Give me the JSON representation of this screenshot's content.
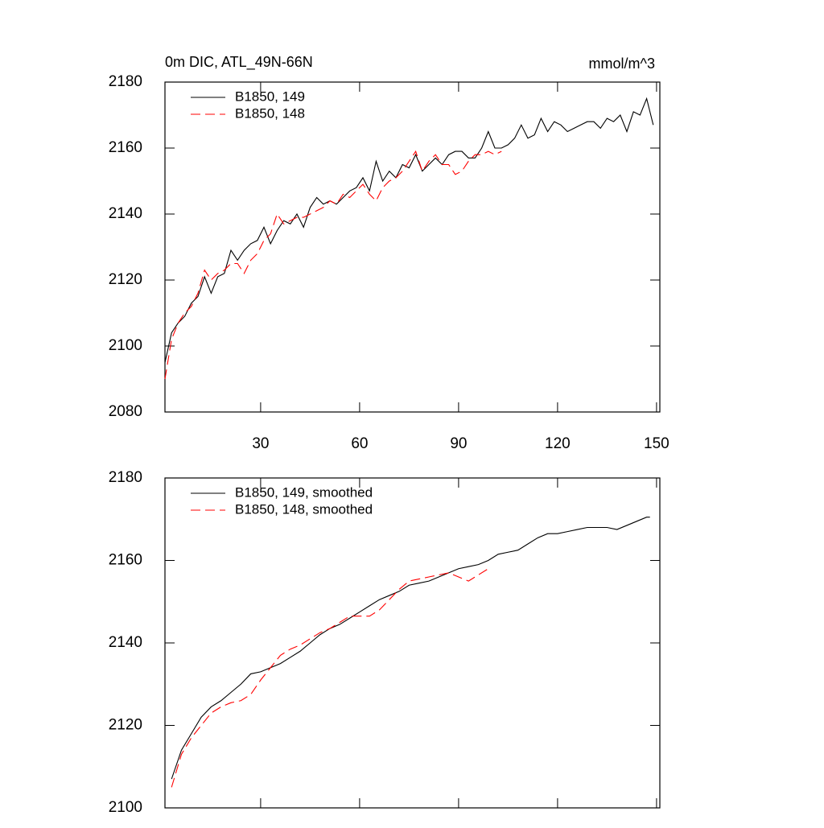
{
  "chart_data": [
    {
      "type": "line",
      "title": "0m DIC, ATL_49N-66N",
      "units": "mmol/m^3",
      "xlim": [
        1,
        151
      ],
      "xticks": [
        30,
        60,
        90,
        120,
        150
      ],
      "xticklabels": true,
      "ylim": [
        2080,
        2180
      ],
      "yticks": [
        2080,
        2100,
        2120,
        2140,
        2160,
        2180
      ],
      "series": [
        {
          "name": "B1850, 149",
          "color": "#000000",
          "linestyle": "solid",
          "x": [
            1,
            3,
            5,
            7,
            9,
            11,
            13,
            15,
            17,
            19,
            21,
            23,
            25,
            27,
            29,
            31,
            33,
            35,
            37,
            39,
            41,
            43,
            45,
            47,
            49,
            51,
            53,
            55,
            57,
            59,
            61,
            63,
            65,
            67,
            69,
            71,
            73,
            75,
            77,
            79,
            81,
            83,
            85,
            87,
            89,
            91,
            93,
            95,
            97,
            99,
            101,
            103,
            105,
            107,
            109,
            111,
            113,
            115,
            117,
            119,
            121,
            123,
            125,
            127,
            129,
            131,
            133,
            135,
            137,
            139,
            141,
            143,
            145,
            147,
            149
          ],
          "values": [
            2095,
            2104,
            2107,
            2109,
            2113,
            2115,
            2121,
            2116,
            2121,
            2122,
            2129,
            2126,
            2129,
            2131,
            2132,
            2136,
            2131,
            2135,
            2138,
            2137,
            2140,
            2136,
            2142,
            2145,
            2143,
            2144,
            2143,
            2145,
            2147,
            2148,
            2151,
            2147,
            2156,
            2150,
            2153,
            2151,
            2155,
            2154,
            2158,
            2153,
            2155,
            2157,
            2155,
            2158,
            2159,
            2159,
            2157,
            2157,
            2160,
            2165,
            2160,
            2160,
            2161,
            2163,
            2167,
            2163,
            2164,
            2169,
            2165,
            2168,
            2167,
            2165,
            2166,
            2167,
            2168,
            2168,
            2166,
            2169,
            2168,
            2170,
            2165,
            2171,
            2170,
            2175,
            2167
          ]
        },
        {
          "name": "B1850, 148",
          "color": "#ff0000",
          "linestyle": "dashed",
          "x": [
            1,
            3,
            5,
            7,
            9,
            11,
            13,
            15,
            17,
            19,
            21,
            23,
            25,
            27,
            29,
            31,
            33,
            35,
            37,
            39,
            41,
            43,
            45,
            47,
            49,
            51,
            53,
            55,
            57,
            59,
            61,
            63,
            65,
            67,
            69,
            71,
            73,
            75,
            77,
            79,
            81,
            83,
            85,
            87,
            89,
            91,
            93,
            95,
            97,
            99,
            101,
            103
          ],
          "values": [
            2090,
            2102,
            2107,
            2110,
            2112,
            2116,
            2123,
            2120,
            2122,
            2123,
            2125,
            2125,
            2122,
            2126,
            2128,
            2132,
            2134,
            2140,
            2137,
            2138,
            2139,
            2139,
            2140,
            2141,
            2142,
            2144,
            2143,
            2146,
            2145,
            2147,
            2149,
            2146,
            2144,
            2148,
            2150,
            2151,
            2153,
            2156,
            2159,
            2153,
            2156,
            2158,
            2155,
            2155,
            2152,
            2153,
            2156,
            2158,
            2158,
            2159,
            2158,
            2159
          ]
        }
      ]
    },
    {
      "type": "line",
      "xlim": [
        1,
        151
      ],
      "xticks": [
        30,
        60,
        90,
        120,
        150
      ],
      "xticklabels": false,
      "ylim": [
        2100,
        2180
      ],
      "yticks": [
        2100,
        2120,
        2140,
        2160,
        2180
      ],
      "series": [
        {
          "name": "B1850, 149, smoothed",
          "color": "#000000",
          "linestyle": "solid",
          "x": [
            3,
            6,
            9,
            12,
            15,
            18,
            21,
            24,
            27,
            30,
            33,
            36,
            39,
            42,
            45,
            48,
            51,
            54,
            57,
            60,
            63,
            66,
            69,
            72,
            75,
            78,
            81,
            84,
            87,
            90,
            93,
            96,
            99,
            102,
            105,
            108,
            111,
            114,
            117,
            120,
            123,
            126,
            129,
            132,
            135,
            138,
            141,
            144,
            147,
            148
          ],
          "values": [
            2107,
            2114,
            2118,
            2122,
            2124.5,
            2126,
            2128,
            2130,
            2132.5,
            2133,
            2134,
            2135,
            2136.5,
            2138,
            2140,
            2142,
            2143.5,
            2144.5,
            2146,
            2147.5,
            2149,
            2150.5,
            2151.5,
            2152.5,
            2154,
            2154.5,
            2155,
            2156,
            2157,
            2158,
            2158.5,
            2159,
            2160,
            2161.5,
            2162,
            2162.5,
            2164,
            2165.5,
            2166.5,
            2166.5,
            2167,
            2167.5,
            2168,
            2168,
            2168,
            2167.5,
            2168.5,
            2169.5,
            2170.5,
            2170.5
          ]
        },
        {
          "name": "B1850, 148, smoothed",
          "color": "#ff0000",
          "linestyle": "dashed",
          "x": [
            3,
            6,
            9,
            12,
            15,
            18,
            21,
            24,
            27,
            30,
            33,
            36,
            39,
            42,
            45,
            48,
            51,
            54,
            57,
            60,
            63,
            66,
            69,
            72,
            75,
            78,
            81,
            84,
            87,
            90,
            93,
            96,
            99,
            100
          ],
          "values": [
            2105,
            2113,
            2117,
            2120,
            2123,
            2124.5,
            2125.5,
            2126,
            2127.5,
            2131,
            2134,
            2137,
            2138.5,
            2139.5,
            2141,
            2142.5,
            2143.5,
            2145,
            2146.5,
            2146.5,
            2146.5,
            2148,
            2150.5,
            2153,
            2155,
            2155.5,
            2156,
            2156.5,
            2157,
            2156,
            2155,
            2156.5,
            2158,
            2158
          ]
        }
      ]
    }
  ]
}
